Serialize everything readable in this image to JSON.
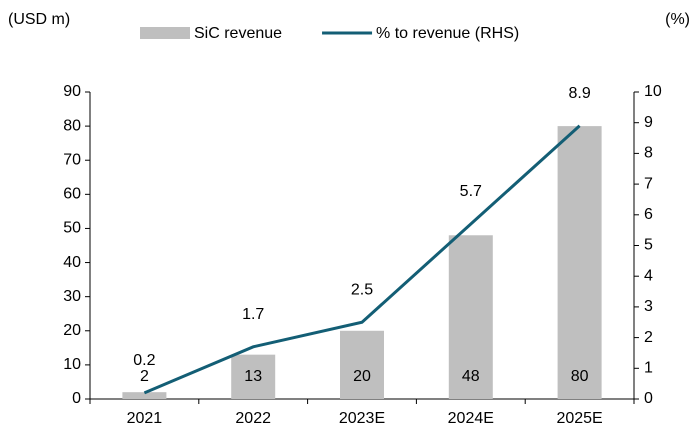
{
  "chart_data": {
    "type": "bar",
    "y_label": "(USD m)",
    "y2_label": "(%)",
    "categories": [
      "2021",
      "2022",
      "2023E",
      "2024E",
      "2025E"
    ],
    "series": [
      {
        "name": "SiC revenue",
        "type": "bar",
        "color": "#bfbfbf",
        "values": [
          2,
          13,
          20,
          48,
          80
        ]
      },
      {
        "name": "% to revenue (RHS)",
        "type": "line",
        "axis": "y2",
        "color": "#135e75",
        "values": [
          0.2,
          1.7,
          2.5,
          5.7,
          8.9
        ]
      }
    ],
    "ylim": [
      0,
      90
    ],
    "yticks": [
      0,
      10,
      20,
      30,
      40,
      50,
      60,
      70,
      80,
      90
    ],
    "y2lim": [
      0,
      10
    ],
    "y2ticks": [
      0,
      1,
      2,
      3,
      4,
      5,
      6,
      7,
      8,
      9,
      10
    ],
    "legend": "top",
    "grid": false
  }
}
